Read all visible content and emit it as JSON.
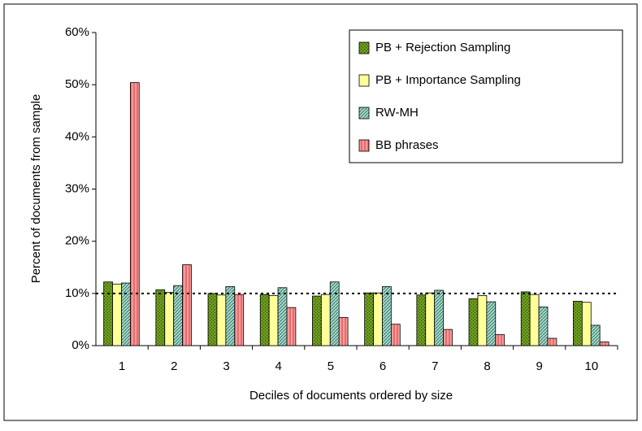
{
  "chart_data": {
    "type": "bar",
    "x_label": "Deciles of documents ordered by size",
    "y_label": "Percent of documents from sample",
    "categories": [
      "1",
      "2",
      "3",
      "4",
      "5",
      "6",
      "7",
      "8",
      "9",
      "10"
    ],
    "series": [
      {
        "name": "PB + Rejection Sampling",
        "color": "#6b9a1f",
        "values": [
          12.2,
          10.7,
          10.0,
          9.8,
          9.5,
          10.1,
          9.7,
          9.0,
          10.3,
          8.5
        ]
      },
      {
        "name": "PB + Importance Sampling",
        "color": "#ffff99",
        "values": [
          11.8,
          10.2,
          9.7,
          9.6,
          9.8,
          10.1,
          10.1,
          9.6,
          9.8,
          8.3
        ]
      },
      {
        "name": "RW-MH",
        "color": "#a6d8cc",
        "values": [
          12.0,
          11.5,
          11.3,
          11.1,
          12.2,
          11.3,
          10.6,
          8.4,
          7.4,
          3.9
        ]
      },
      {
        "name": "BB phrases",
        "color": "#ff9999",
        "values": [
          50.4,
          15.5,
          9.8,
          7.3,
          5.4,
          4.1,
          3.1,
          2.1,
          1.4,
          0.7
        ]
      }
    ],
    "reference_line": 10,
    "ylim": [
      0,
      60
    ],
    "yticks": [
      {
        "value": 0,
        "label": "0%"
      },
      {
        "value": 10,
        "label": "10%"
      },
      {
        "value": 20,
        "label": "20%"
      },
      {
        "value": 30,
        "label": "30%"
      },
      {
        "value": 40,
        "label": "40%"
      },
      {
        "value": 50,
        "label": "50%"
      },
      {
        "value": 60,
        "label": "60%"
      }
    ],
    "legend": "top-right"
  }
}
